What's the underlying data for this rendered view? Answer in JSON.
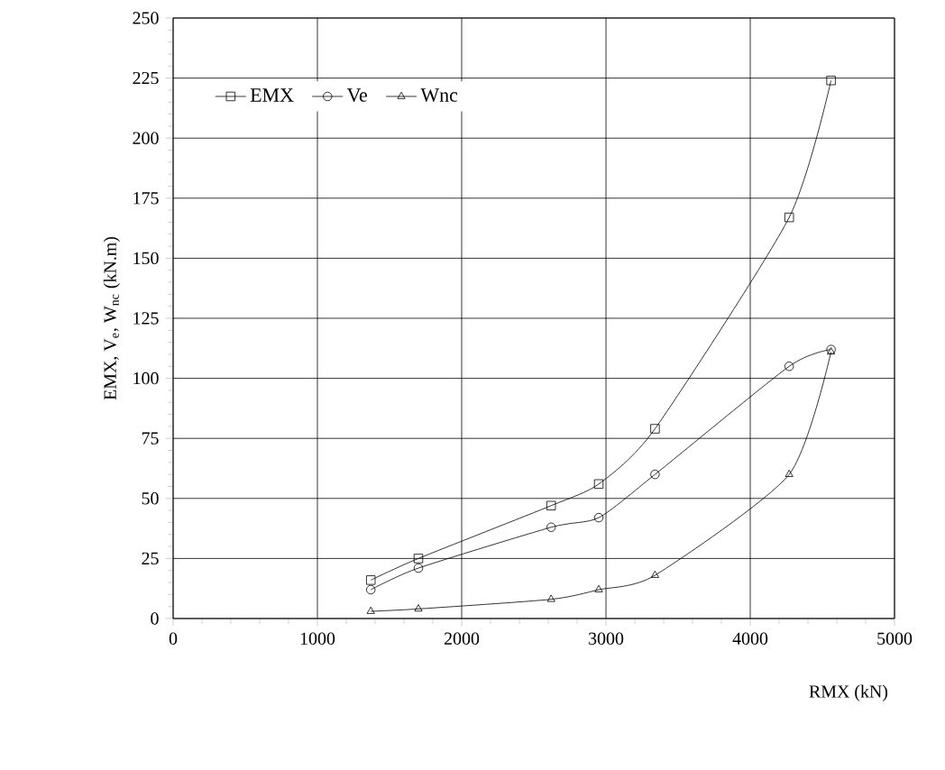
{
  "chart_data": {
    "type": "line",
    "xlabel": "RMX (kN)",
    "ylabel": "EMX,  V$_{e}$,  W$_{nc}$ (kN.m)",
    "x": [
      1370,
      1700,
      2620,
      2950,
      3340,
      4270,
      4560
    ],
    "series": [
      {
        "name": "EMX",
        "color": "#000000",
        "marker": "square",
        "values": [
          16,
          25,
          47,
          56,
          79,
          167,
          224
        ]
      },
      {
        "name": "Ve",
        "color": "#000000",
        "marker": "circle",
        "values": [
          12,
          21,
          38,
          42,
          60,
          105,
          112
        ]
      },
      {
        "name": "Wnc",
        "color": "#000000",
        "marker": "triangle",
        "values": [
          3,
          4,
          8,
          12,
          18,
          60,
          111
        ]
      }
    ],
    "xlim": [
      0,
      5000
    ],
    "xticks": [
      0,
      1000,
      2000,
      3000,
      4000,
      5000
    ],
    "ylim": [
      0,
      250
    ],
    "yticks": [
      0,
      25,
      50,
      75,
      100,
      125,
      150,
      175,
      200,
      225,
      250
    ],
    "grid": true,
    "legend": "top left",
    "line_style": "solid"
  }
}
